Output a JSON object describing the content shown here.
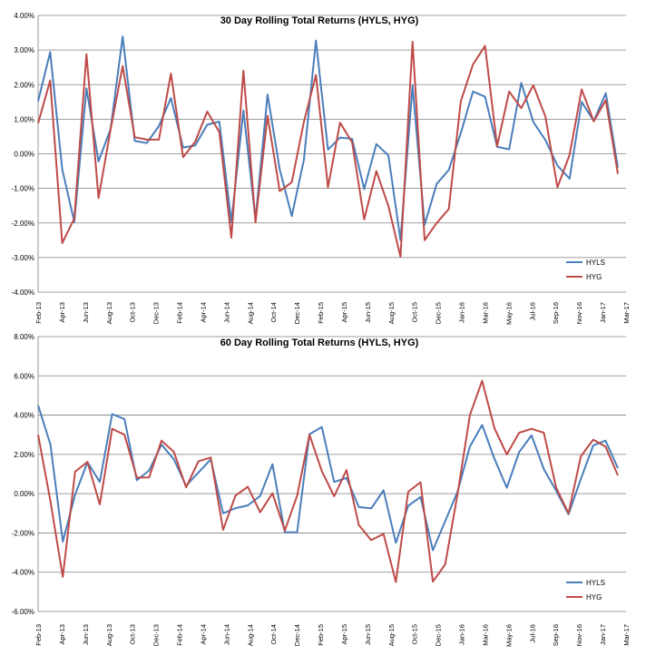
{
  "colors": {
    "hyls": "#4a7ebb",
    "hyg": "#be4b48",
    "grid": "#7f7f7f"
  },
  "chart_data": [
    {
      "type": "line",
      "title": "30 Day Rolling Total Returns (HYLS, HYG)",
      "ylim": [
        -0.04,
        0.04
      ],
      "yticks": [
        0.04,
        0.03,
        0.02,
        0.01,
        0.0,
        -0.01,
        -0.02,
        -0.03,
        -0.04
      ],
      "ytick_labels": [
        "4.00%",
        "3.00%",
        "2.00%",
        "1.00%",
        "0.00%",
        "-1.00%",
        "-2.00%",
        "-3.00%",
        "-4.00%"
      ],
      "x_tick_labels": [
        "Feb-13",
        "Apr-13",
        "Jun-13",
        "Aug-13",
        "Oct-13",
        "Dec-13",
        "Feb-14",
        "Apr-14",
        "Jun-14",
        "Aug-14",
        "Oct-14",
        "Dec-14",
        "Feb-15",
        "Apr-15",
        "Jun-15",
        "Aug-15",
        "Oct-15",
        "Dec-15",
        "Jan-16",
        "Mar-16",
        "May-16",
        "Jul-16",
        "Sep-16",
        "Nov-16",
        "Jan-17",
        "Mar-17"
      ],
      "grid": true,
      "legend_position": "bottom-right",
      "series": [
        {
          "name": "HYLS",
          "color": "#4a7ebb",
          "values": [
            0.0152,
            0.0294,
            -0.0045,
            -0.0197,
            0.0189,
            -0.0022,
            0.0072,
            0.0339,
            0.0037,
            0.0031,
            0.008,
            0.0161,
            0.0018,
            0.0024,
            0.0084,
            0.0093,
            -0.0197,
            0.0125,
            -0.019,
            0.0171,
            -0.0045,
            -0.018,
            -0.0018,
            0.0327,
            0.0012,
            0.0047,
            0.0043,
            -0.0102,
            0.0028,
            -0.0005,
            -0.025,
            0.0197,
            -0.0205,
            -0.0087,
            -0.0047,
            0.006,
            0.018,
            0.0165,
            0.002,
            0.0013,
            0.0205,
            0.0092,
            0.004,
            -0.0034,
            -0.0072,
            0.015,
            0.0095,
            0.0175,
            -0.004
          ]
        },
        {
          "name": "HYG",
          "color": "#be4b48",
          "values": [
            0.0088,
            0.0212,
            -0.0258,
            -0.0187,
            0.0288,
            -0.0128,
            0.007,
            0.0254,
            0.0048,
            0.0041,
            0.0041,
            0.0232,
            -0.001,
            0.0035,
            0.0122,
            0.0063,
            -0.0243,
            0.024,
            -0.0198,
            0.011,
            -0.0108,
            -0.0082,
            0.0092,
            0.0228,
            -0.0097,
            0.009,
            0.0033,
            -0.019,
            -0.005,
            -0.0151,
            -0.0298,
            0.0324,
            -0.025,
            -0.02,
            -0.016,
            0.0152,
            0.0258,
            0.0312,
            0.0022,
            0.018,
            0.0132,
            0.0198,
            0.0108,
            -0.0097,
            -0.0003,
            0.0186,
            0.0094,
            0.0155,
            -0.0058
          ]
        }
      ]
    },
    {
      "type": "line",
      "title": "60 Day Rolling Total Returns (HYLS, HYG)",
      "ylim": [
        -0.06,
        0.08
      ],
      "yticks": [
        0.08,
        0.06,
        0.04,
        0.02,
        0.0,
        -0.02,
        -0.04,
        -0.06
      ],
      "ytick_labels": [
        "8.00%",
        "6.00%",
        "4.00%",
        "2.00%",
        "0.00%",
        "-2.00%",
        "-4.00%",
        "-6.00%"
      ],
      "x_tick_labels": [
        "Feb-13",
        "Apr-13",
        "Jun-13",
        "Aug-13",
        "Oct-13",
        "Dec-13",
        "Feb-14",
        "Apr-14",
        "Jun-14",
        "Aug-14",
        "Oct-14",
        "Dec-14",
        "Feb-15",
        "Apr-15",
        "Jun-15",
        "Aug-15",
        "Oct-15",
        "Dec-15",
        "Jan-16",
        "Mar-16",
        "May-16",
        "Jul-16",
        "Sep-16",
        "Nov-16",
        "Jan-17",
        "Mar-17"
      ],
      "grid": true,
      "legend_position": "bottom-right",
      "series": [
        {
          "name": "HYLS",
          "color": "#4a7ebb",
          "values": [
            0.045,
            0.025,
            -0.0244,
            -0.0005,
            0.016,
            0.006,
            0.0405,
            0.038,
            0.0068,
            0.0118,
            0.025,
            0.0175,
            0.004,
            0.0108,
            0.0175,
            -0.01,
            -0.0074,
            -0.006,
            -0.0012,
            0.015,
            -0.0197,
            -0.0196,
            0.0303,
            0.034,
            0.006,
            0.008,
            -0.0068,
            -0.0075,
            0.0017,
            -0.025,
            -0.0062,
            -0.0017,
            -0.0288,
            -0.014,
            0.001,
            0.024,
            0.035,
            0.0177,
            0.003,
            0.0212,
            0.0297,
            0.0125,
            0.0015,
            -0.0105,
            0.0075,
            0.0245,
            0.027,
            0.013
          ]
        },
        {
          "name": "HYG",
          "color": "#be4b48",
          "values": [
            0.03,
            -0.0038,
            -0.0424,
            0.0112,
            0.0162,
            -0.0055,
            0.033,
            0.03,
            0.0082,
            0.0083,
            0.027,
            0.0213,
            0.0032,
            0.0165,
            0.0184,
            -0.0184,
            -0.001,
            0.0035,
            -0.0095,
            0.0002,
            -0.0188,
            -0.001,
            0.03,
            0.0115,
            -0.0013,
            0.012,
            -0.016,
            -0.0237,
            -0.0205,
            -0.045,
            0.001,
            0.0058,
            -0.0448,
            -0.036,
            -0.0002,
            0.04,
            0.0575,
            0.0333,
            0.02,
            0.031,
            0.033,
            0.031,
            0.003,
            -0.01,
            0.019,
            0.0275,
            0.024,
            0.0093
          ]
        }
      ]
    }
  ]
}
